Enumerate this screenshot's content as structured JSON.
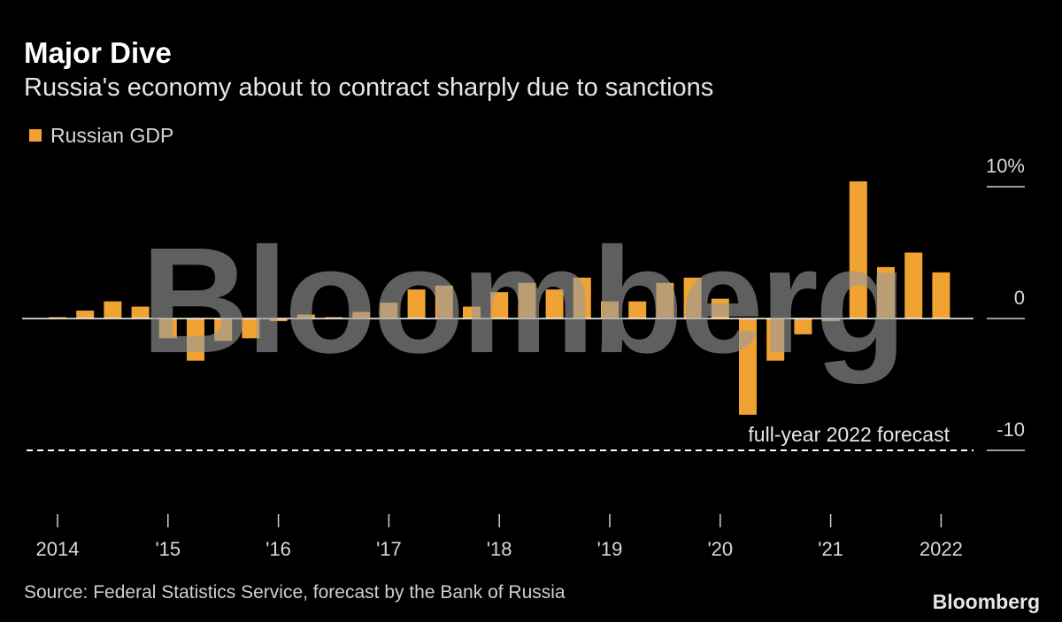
{
  "chart_data": {
    "type": "bar",
    "title": "Major Dive",
    "subtitle": "Russia's economy about to contract sharply due to sanctions",
    "series": [
      {
        "name": "Russian GDP",
        "color": "#f0a232",
        "values": [
          0.1,
          0.6,
          1.3,
          0.9,
          -1.5,
          -3.2,
          -1.7,
          -1.5,
          -0.2,
          0.3,
          0.1,
          0.5,
          1.2,
          2.2,
          2.5,
          0.9,
          2.0,
          2.7,
          2.2,
          3.1,
          1.3,
          1.3,
          2.7,
          3.1,
          1.5,
          -7.3,
          -3.2,
          -1.2,
          -0.2,
          10.4,
          3.9,
          5.0,
          3.5
        ]
      }
    ],
    "categories": [
      "2014",
      null,
      null,
      null,
      "'15",
      null,
      null,
      null,
      "'16",
      null,
      null,
      null,
      "'17",
      null,
      null,
      null,
      "'18",
      null,
      null,
      null,
      "'19",
      null,
      null,
      null,
      "'20",
      null,
      null,
      null,
      "'21",
      null,
      null,
      null,
      "2022"
    ],
    "ylim": [
      -10,
      10.5
    ],
    "yticks": [
      {
        "value": 10,
        "label": "10%"
      },
      0,
      -10
    ],
    "reference_line": {
      "value": -10,
      "label": "full-year 2022 forecast"
    },
    "source": "Source: Federal Statistics Service, forecast by the Bank of Russia",
    "watermark": "Bloomberg",
    "brand": "Bloomberg"
  }
}
